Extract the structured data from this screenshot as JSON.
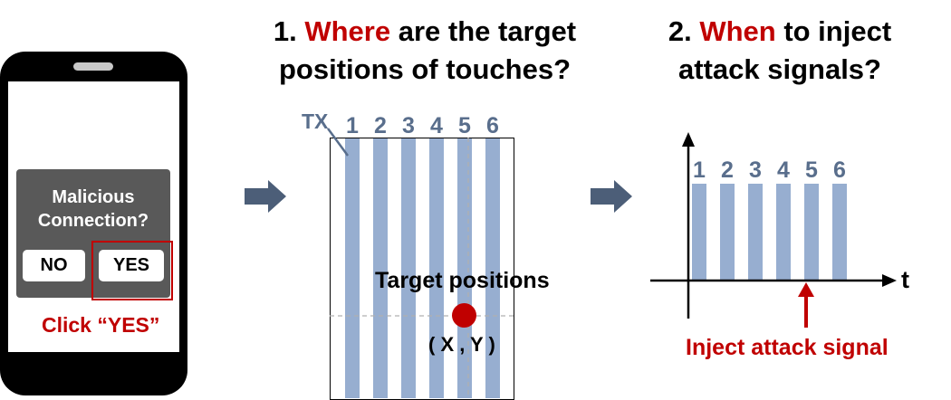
{
  "phone": {
    "dialog_line1": "Malicious",
    "dialog_line2": "Connection?",
    "no_label": "NO",
    "yes_label": "YES",
    "click_label": "Click “YES”"
  },
  "title1": {
    "num": "1.",
    "highlight": "Where",
    "rest_line1": "are the target",
    "line2": "positions of touches?"
  },
  "title2": {
    "num": "2.",
    "highlight": "When",
    "rest_line1": "to inject",
    "line2": "attack signals?"
  },
  "panel": {
    "tx_label": "TX",
    "columns": [
      "1",
      "2",
      "3",
      "4",
      "5",
      "6"
    ],
    "target_label": "Target positions",
    "coord_label": "( X , Y )"
  },
  "timing": {
    "pulses": [
      "1",
      "2",
      "3",
      "4",
      "5",
      "6"
    ],
    "axis_label": "t",
    "inject_label": "Inject attack signal"
  },
  "colors": {
    "highlight": "#c00000",
    "electrode": "#97aed0",
    "arrow": "#4c5e78",
    "label_blue": "#596e8c",
    "dialog": "#595959"
  }
}
